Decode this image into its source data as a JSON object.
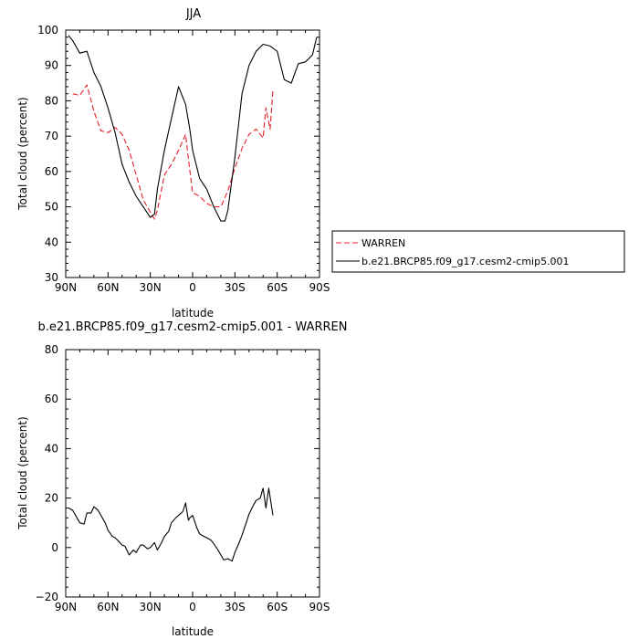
{
  "chart_data": [
    {
      "type": "line",
      "title": "JJA",
      "xlabel": "latitude",
      "ylabel": "Total cloud (percent)",
      "ylim": [
        30,
        100
      ],
      "xlim": [
        90,
        -90
      ],
      "x_ticks": [
        90,
        60,
        30,
        0,
        -30,
        -60,
        -90
      ],
      "x_tick_labels": [
        "90N",
        "60N",
        "30N",
        "0",
        "30S",
        "60S",
        "90S"
      ],
      "y_ticks": [
        30,
        40,
        50,
        60,
        70,
        80,
        90,
        100
      ],
      "y_tick_labels": [
        "30",
        "40",
        "50",
        "60",
        "70",
        "80",
        "90",
        "100"
      ],
      "grid": false,
      "legend_position": "right",
      "series": [
        {
          "name": "WARREN",
          "color": "#e8202a",
          "dash": "dashed",
          "x": [
            85,
            80,
            75,
            70,
            65,
            60,
            55,
            50,
            45,
            40,
            35,
            30,
            27,
            25,
            20,
            15,
            10,
            5,
            3,
            0,
            -5,
            -10,
            -15,
            -20,
            -25,
            -30,
            -35,
            -40,
            -45,
            -50,
            -52,
            -55,
            -57
          ],
          "y": [
            82,
            81.5,
            84.5,
            77,
            71.5,
            71,
            72.5,
            70.5,
            66,
            59,
            52,
            48.5,
            46.5,
            49,
            59,
            62,
            66,
            70.5,
            63.5,
            54,
            53,
            51,
            50,
            50,
            54.5,
            61,
            66.5,
            70.5,
            72,
            69.5,
            78,
            72,
            83
          ]
        },
        {
          "name": "b.e21.BRCP85.f09_g17.cesm2-cmip5.001",
          "color": "#000000",
          "dash": "solid",
          "x": [
            88,
            85,
            80,
            75,
            70,
            65,
            60,
            55,
            50,
            45,
            40,
            35,
            30,
            27,
            25,
            20,
            15,
            10,
            5,
            2,
            0,
            -5,
            -10,
            -15,
            -20,
            -23,
            -25,
            -30,
            -35,
            -40,
            -45,
            -50,
            -55,
            -60,
            -65,
            -70,
            -75,
            -80,
            -85,
            -88
          ],
          "y": [
            98.5,
            97,
            93.5,
            94,
            88,
            84,
            78,
            71,
            62,
            57,
            53,
            50,
            47,
            48,
            55,
            66,
            75,
            84,
            79,
            72,
            66,
            58,
            55,
            50,
            46,
            46,
            49,
            64,
            82,
            90,
            94,
            96,
            95.5,
            94,
            86,
            85,
            90.5,
            91,
            93,
            98
          ]
        }
      ]
    },
    {
      "type": "line",
      "title": "b.e21.BRCP85.f09_g17.cesm2-cmip5.001 - WARREN",
      "xlabel": "latitude",
      "ylabel": "Total cloud (percent)",
      "ylim": [
        -20,
        80
      ],
      "xlim": [
        90,
        -90
      ],
      "x_ticks": [
        90,
        60,
        30,
        0,
        -30,
        -60,
        -90
      ],
      "x_tick_labels": [
        "90N",
        "60N",
        "30N",
        "0",
        "30S",
        "60S",
        "90S"
      ],
      "y_ticks": [
        -20,
        0,
        20,
        40,
        60,
        80
      ],
      "y_tick_labels": [
        "−20",
        "0",
        "20",
        "40",
        "60",
        "80"
      ],
      "grid": false,
      "series": [
        {
          "color": "#000000",
          "dash": "solid",
          "x": [
            88,
            85,
            80,
            77,
            75,
            72,
            70,
            67,
            65,
            62,
            60,
            57,
            55,
            50,
            48,
            45,
            42,
            40,
            37,
            35,
            32,
            30,
            27,
            25,
            22,
            20,
            17,
            15,
            12,
            10,
            7,
            5,
            3,
            2,
            0,
            -3,
            -5,
            -8,
            -10,
            -13,
            -15,
            -18,
            -20,
            -22,
            -25,
            -28,
            -30,
            -33,
            -35,
            -38,
            -40,
            -43,
            -45,
            -48,
            -50,
            -52,
            -54,
            -57
          ],
          "y": [
            16,
            15,
            10,
            9.5,
            14,
            14,
            16.5,
            15,
            13,
            10,
            7,
            4.5,
            4,
            1,
            0.5,
            -3,
            -1,
            -2,
            1,
            1,
            -0.5,
            0,
            2,
            -1,
            2,
            4.5,
            6.5,
            10,
            12,
            13,
            14.5,
            18,
            11,
            12,
            13,
            8,
            5.5,
            4.5,
            4,
            3,
            1.5,
            -1,
            -3,
            -5,
            -4.5,
            -5.5,
            -2,
            2,
            5,
            10,
            13.5,
            17,
            19,
            20,
            24,
            16,
            24,
            13
          ]
        }
      ]
    }
  ]
}
